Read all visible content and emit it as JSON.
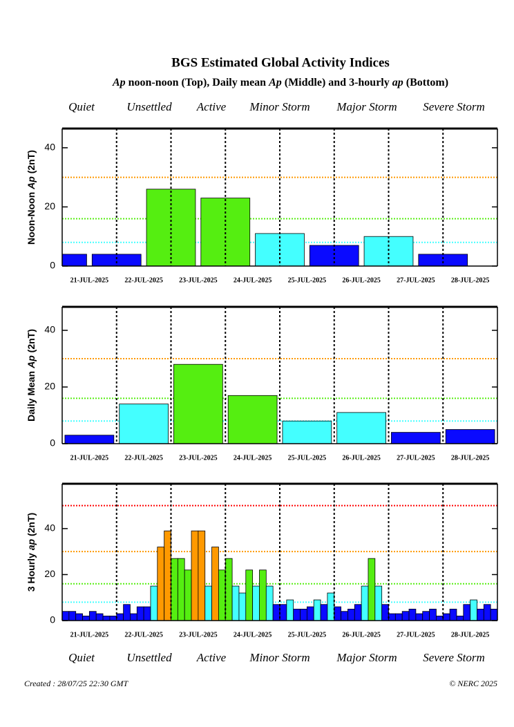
{
  "title": "BGS Estimated Global Activity Indices",
  "subtitle": "Ap noon-noon (Top), Daily mean Ap (Middle) and 3-hourly ap (Bottom)",
  "legend": [
    {
      "name": "Quiet",
      "color": "#0000cc"
    },
    {
      "name": "Unsettled",
      "color": "#44ffff"
    },
    {
      "name": "Active",
      "color": "#55ee11"
    },
    {
      "name": "Minor Storm",
      "color": "#ff9900"
    },
    {
      "name": "Major Storm",
      "color": "#ff0000"
    },
    {
      "name": "Severe Storm",
      "color": "#ff00ff"
    }
  ],
  "chart_data": [
    {
      "type": "bar",
      "bar_align": "edge",
      "ylabel": "Noon-Noon Ap (2nT)",
      "categories": [
        "21-JUL-2025",
        "22-JUL-2025",
        "23-JUL-2025",
        "24-JUL-2025",
        "25-JUL-2025",
        "26-JUL-2025",
        "27-JUL-2025",
        "28-JUL-2025"
      ],
      "values": [
        4,
        4,
        26,
        23,
        11,
        7,
        10,
        4
      ],
      "colors": [
        "#0a0aff",
        "#0a0aff",
        "#55ee11",
        "#55ee11",
        "#44ffff",
        "#0a0aff",
        "#44ffff",
        "#0a0aff"
      ],
      "ylim": [
        0,
        46.5
      ],
      "yticks": [
        0,
        20,
        40
      ],
      "thresholds": [
        {
          "value": 8,
          "color": "#44ffff"
        },
        {
          "value": 16,
          "color": "#55ee11"
        },
        {
          "value": 30,
          "color": "#ff9900"
        }
      ]
    },
    {
      "type": "bar",
      "bar_align": "center",
      "ylabel": "Daily Mean Ap (2nT)",
      "categories": [
        "21-JUL-2025",
        "22-JUL-2025",
        "23-JUL-2025",
        "24-JUL-2025",
        "25-JUL-2025",
        "26-JUL-2025",
        "27-JUL-2025",
        "28-JUL-2025"
      ],
      "values": [
        3,
        14,
        28,
        17,
        8,
        11,
        4,
        5
      ],
      "colors": [
        "#0a0aff",
        "#44ffff",
        "#55ee11",
        "#55ee11",
        "#44ffff",
        "#44ffff",
        "#0a0aff",
        "#0a0aff"
      ],
      "ylim": [
        0,
        48.3
      ],
      "yticks": [
        0,
        20,
        40
      ],
      "thresholds": [
        {
          "value": 8,
          "color": "#44ffff"
        },
        {
          "value": 16,
          "color": "#55ee11"
        },
        {
          "value": 30,
          "color": "#ff9900"
        }
      ]
    },
    {
      "type": "bar",
      "bar_align": "slot",
      "ylabel": "3 Hourly ap (2nT)",
      "day_labels": [
        "21-JUL-2025",
        "22-JUL-2025",
        "23-JUL-2025",
        "24-JUL-2025",
        "25-JUL-2025",
        "26-JUL-2025",
        "27-JUL-2025",
        "28-JUL-2025"
      ],
      "values": [
        4,
        4,
        3,
        2,
        4,
        3,
        2,
        2,
        3,
        7,
        3,
        6,
        6,
        15,
        32,
        39,
        27,
        27,
        22,
        39,
        39,
        15,
        32,
        22,
        27,
        15,
        12,
        22,
        15,
        22,
        15,
        7,
        7,
        9,
        5,
        5,
        6,
        9,
        7,
        12,
        6,
        4,
        5,
        7,
        15,
        27,
        15,
        7,
        3,
        3,
        4,
        5,
        3,
        4,
        5,
        2,
        3,
        5,
        2,
        7,
        9,
        5,
        7,
        5
      ],
      "colors": [
        "#0a0aff",
        "#0a0aff",
        "#0a0aff",
        "#0a0aff",
        "#0a0aff",
        "#0a0aff",
        "#0a0aff",
        "#0a0aff",
        "#0a0aff",
        "#0a0aff",
        "#0a0aff",
        "#0a0aff",
        "#0a0aff",
        "#44ffff",
        "#ff9900",
        "#ff9900",
        "#55ee11",
        "#55ee11",
        "#55ee11",
        "#ff9900",
        "#ff9900",
        "#44ffff",
        "#ff9900",
        "#55ee11",
        "#55ee11",
        "#44ffff",
        "#44ffff",
        "#55ee11",
        "#44ffff",
        "#55ee11",
        "#44ffff",
        "#0a0aff",
        "#0a0aff",
        "#44ffff",
        "#0a0aff",
        "#0a0aff",
        "#0a0aff",
        "#44ffff",
        "#0a0aff",
        "#44ffff",
        "#0a0aff",
        "#0a0aff",
        "#0a0aff",
        "#0a0aff",
        "#44ffff",
        "#55ee11",
        "#44ffff",
        "#0a0aff",
        "#0a0aff",
        "#0a0aff",
        "#0a0aff",
        "#0a0aff",
        "#0a0aff",
        "#0a0aff",
        "#0a0aff",
        "#0a0aff",
        "#0a0aff",
        "#0a0aff",
        "#0a0aff",
        "#0a0aff",
        "#44ffff",
        "#0a0aff",
        "#0a0aff",
        "#0a0aff"
      ],
      "ylim": [
        0,
        59.5
      ],
      "yticks": [
        0,
        20,
        40
      ],
      "thresholds": [
        {
          "value": 8,
          "color": "#44ffff"
        },
        {
          "value": 16,
          "color": "#55ee11"
        },
        {
          "value": 30,
          "color": "#ff9900"
        },
        {
          "value": 50,
          "color": "#ff0000"
        }
      ]
    }
  ],
  "footer": {
    "created": "Created : 28/07/25 22:30 GMT",
    "copyright": "© NERC 2025"
  }
}
